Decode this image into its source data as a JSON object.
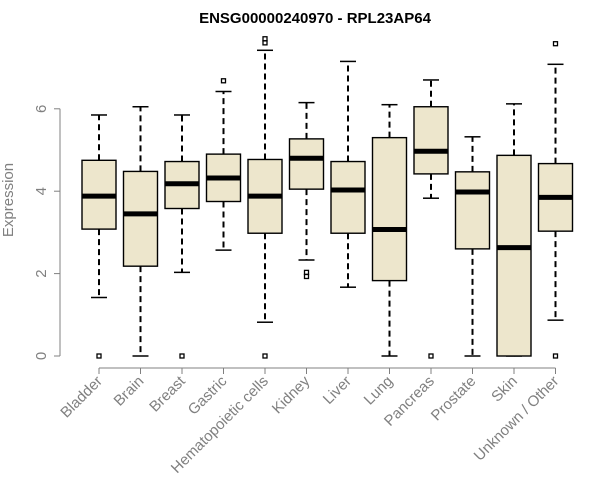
{
  "chart_data": {
    "type": "boxplot",
    "title": "ENSG00000240970 - RPL23AP64",
    "xlabel": "",
    "ylabel": "Expression",
    "ylim": [
      0,
      7.7
    ],
    "yticks": [
      0,
      2,
      4,
      6
    ],
    "categories": [
      "Bladder",
      "Brain",
      "Breast",
      "Gastric",
      "Hematopoietic cells",
      "Kidney",
      "Liver",
      "Lung",
      "Pancreas",
      "Prostate",
      "Skin",
      "Unknown / Other"
    ],
    "boxes": [
      {
        "category": "Bladder",
        "whisker_low": 1.42,
        "q1": 3.08,
        "median": 3.88,
        "q3": 4.75,
        "whisker_high": 5.85,
        "outliers": [
          0.0
        ]
      },
      {
        "category": "Brain",
        "whisker_low": 0.0,
        "q1": 2.18,
        "median": 3.45,
        "q3": 4.48,
        "whisker_high": 6.05,
        "outliers": []
      },
      {
        "category": "Breast",
        "whisker_low": 2.03,
        "q1": 3.58,
        "median": 4.18,
        "q3": 4.72,
        "whisker_high": 5.85,
        "outliers": [
          0.0
        ]
      },
      {
        "category": "Gastric",
        "whisker_low": 2.57,
        "q1": 3.75,
        "median": 4.32,
        "q3": 4.9,
        "whisker_high": 6.42,
        "outliers": [
          6.68
        ]
      },
      {
        "category": "Hematopoietic cells",
        "whisker_low": 0.82,
        "q1": 2.98,
        "median": 3.88,
        "q3": 4.77,
        "whisker_high": 7.42,
        "outliers": [
          0.0,
          7.6,
          7.7
        ]
      },
      {
        "category": "Kidney",
        "whisker_low": 2.33,
        "q1": 4.05,
        "median": 4.8,
        "q3": 5.27,
        "whisker_high": 6.15,
        "outliers": [
          1.93,
          2.03
        ]
      },
      {
        "category": "Liver",
        "whisker_low": 1.67,
        "q1": 2.98,
        "median": 4.03,
        "q3": 4.72,
        "whisker_high": 7.15,
        "outliers": []
      },
      {
        "category": "Lung",
        "whisker_low": 0.0,
        "q1": 1.83,
        "median": 3.07,
        "q3": 5.3,
        "whisker_high": 6.1,
        "outliers": []
      },
      {
        "category": "Pancreas",
        "whisker_low": 3.83,
        "q1": 4.42,
        "median": 4.97,
        "q3": 6.05,
        "whisker_high": 6.7,
        "outliers": [
          0.0
        ]
      },
      {
        "category": "Prostate",
        "whisker_low": 0.0,
        "q1": 2.6,
        "median": 3.98,
        "q3": 4.47,
        "whisker_high": 5.32,
        "outliers": []
      },
      {
        "category": "Skin",
        "whisker_low": 0.0,
        "q1": 0.0,
        "median": 2.63,
        "q3": 4.87,
        "whisker_high": 6.12,
        "outliers": []
      },
      {
        "category": "Unknown / Other",
        "whisker_low": 0.87,
        "q1": 3.03,
        "median": 3.85,
        "q3": 4.67,
        "whisker_high": 7.08,
        "outliers": [
          0.0,
          7.58
        ]
      }
    ],
    "colors": {
      "box_fill": "#ede6cc",
      "axis": "#808080",
      "text": "#808080",
      "title": "#000000"
    }
  }
}
